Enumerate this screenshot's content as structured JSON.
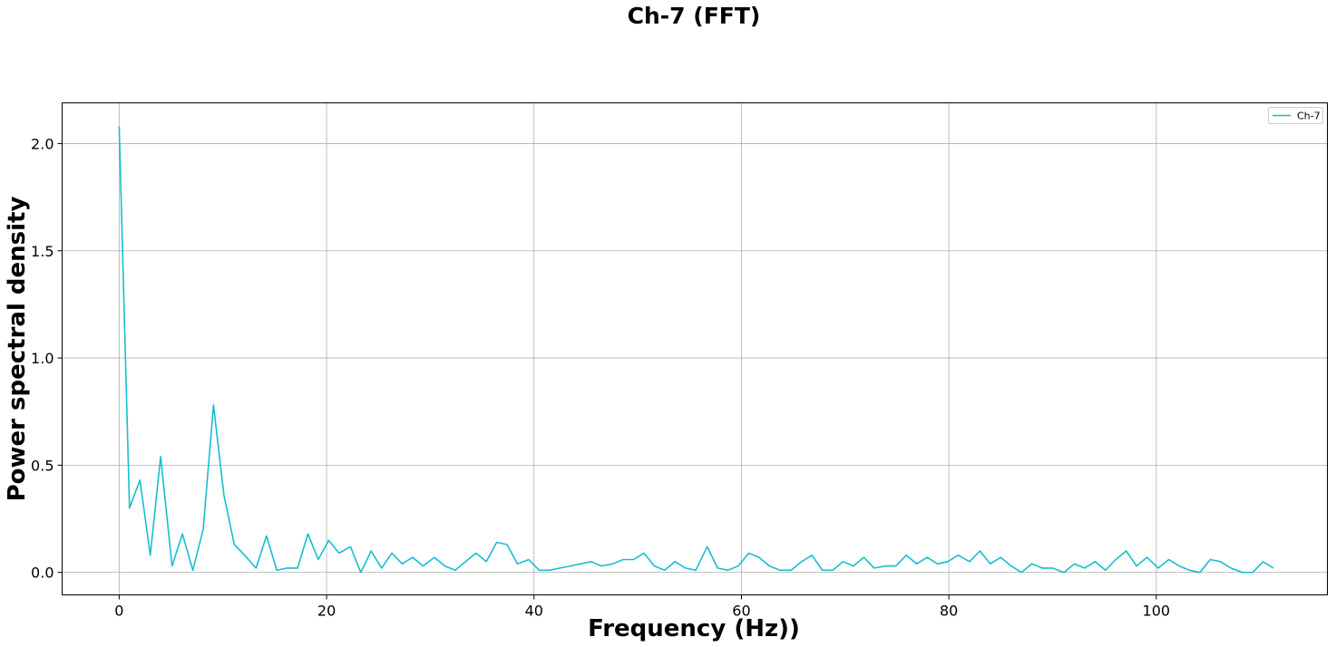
{
  "chart_data": {
    "type": "line",
    "title": "Ch-7 (FFT)",
    "xlabel": "Frequency (Hz))",
    "ylabel": "Power spectral density",
    "xlim": [
      -5.5,
      116.5
    ],
    "ylim": [
      -0.105,
      2.19
    ],
    "xticks": [
      0,
      20,
      40,
      60,
      80,
      100
    ],
    "xtick_labels": [
      "0",
      "20",
      "40",
      "60",
      "80",
      "100"
    ],
    "yticks": [
      0.0,
      0.5,
      1.0,
      1.5,
      2.0
    ],
    "ytick_labels": [
      "0.0",
      "0.5",
      "1.0",
      "1.5",
      "2.0"
    ],
    "grid": true,
    "legend_position": "top-right",
    "series": [
      {
        "name": "Ch-7",
        "color": "#17becf",
        "x": [
          0.0,
          1.0,
          2.0,
          3.0,
          4.0,
          5.1,
          6.1,
          7.1,
          8.1,
          9.1,
          10.1,
          11.1,
          12.1,
          13.2,
          14.2,
          15.2,
          16.2,
          17.2,
          18.2,
          19.2,
          20.2,
          21.2,
          22.3,
          23.3,
          24.3,
          25.3,
          26.3,
          27.3,
          28.3,
          29.3,
          30.4,
          31.4,
          32.4,
          33.4,
          34.4,
          35.4,
          36.4,
          37.4,
          38.4,
          39.5,
          40.5,
          41.5,
          42.5,
          43.5,
          44.5,
          45.5,
          46.5,
          47.6,
          48.6,
          49.6,
          50.6,
          51.6,
          52.6,
          53.6,
          54.6,
          55.6,
          56.7,
          57.7,
          58.7,
          59.7,
          60.7,
          61.7,
          62.7,
          63.7,
          64.8,
          65.8,
          66.8,
          67.8,
          68.8,
          69.8,
          70.8,
          71.8,
          72.8,
          73.9,
          74.9,
          75.9,
          76.9,
          77.9,
          78.9,
          79.9,
          80.9,
          82.0,
          83.0,
          84.0,
          85.0,
          86.0,
          87.0,
          88.0,
          89.0,
          90.0,
          91.1,
          92.1,
          93.1,
          94.1,
          95.1,
          96.1,
          97.1,
          98.1,
          99.1,
          100.2,
          101.2,
          102.2,
          103.2,
          104.2,
          105.2,
          106.2,
          107.2,
          108.3,
          109.3,
          110.3,
          111.3
        ],
        "y": [
          2.08,
          0.3,
          0.43,
          0.08,
          0.54,
          0.03,
          0.18,
          0.01,
          0.2,
          0.78,
          0.36,
          0.13,
          0.08,
          0.02,
          0.17,
          0.01,
          0.02,
          0.02,
          0.18,
          0.06,
          0.15,
          0.09,
          0.12,
          0.0,
          0.1,
          0.02,
          0.09,
          0.04,
          0.07,
          0.03,
          0.07,
          0.03,
          0.01,
          0.05,
          0.09,
          0.05,
          0.14,
          0.13,
          0.04,
          0.06,
          0.01,
          0.01,
          0.02,
          0.03,
          0.04,
          0.05,
          0.03,
          0.04,
          0.06,
          0.06,
          0.09,
          0.03,
          0.01,
          0.05,
          0.02,
          0.01,
          0.12,
          0.02,
          0.01,
          0.03,
          0.09,
          0.07,
          0.03,
          0.01,
          0.01,
          0.05,
          0.08,
          0.01,
          0.01,
          0.05,
          0.03,
          0.07,
          0.02,
          0.03,
          0.03,
          0.08,
          0.04,
          0.07,
          0.04,
          0.05,
          0.08,
          0.05,
          0.1,
          0.04,
          0.07,
          0.03,
          0.0,
          0.04,
          0.02,
          0.02,
          0.0,
          0.04,
          0.02,
          0.05,
          0.01,
          0.06,
          0.1,
          0.03,
          0.07,
          0.02,
          0.06,
          0.03,
          0.01,
          0.0,
          0.06,
          0.05,
          0.02,
          0.0,
          0.0,
          0.05,
          0.02
        ]
      }
    ]
  }
}
